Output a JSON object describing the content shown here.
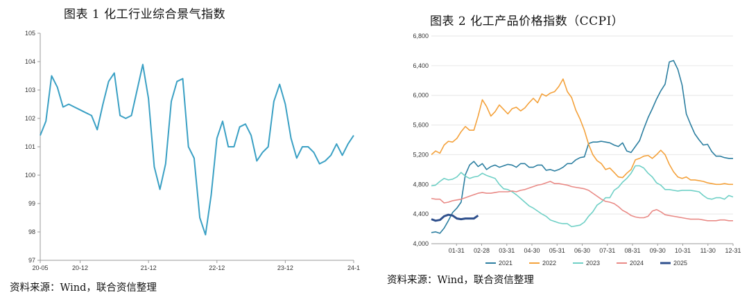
{
  "left": {
    "title": "图表 1  化工行业综合景气指数",
    "source": "资料来源：Wind，联合资信整理"
  },
  "right": {
    "title": "图表 2    化工产品价格指数（CCPI）",
    "source": "资料来源：Wind，联合资信整理"
  },
  "colors": {
    "left_line": "#3aa0c4",
    "s2021": "#2b7ea0",
    "s2022": "#f4a13a",
    "s2023": "#6fd0c6",
    "s2024": "#e98a86",
    "s2025": "#2e4f8c"
  },
  "chart_data": [
    {
      "type": "line",
      "title": "",
      "xlabel": "",
      "ylabel": "",
      "ylim": [
        97,
        105
      ],
      "yticks": [
        "97",
        "98",
        "99",
        "100",
        "101",
        "102",
        "103",
        "104",
        "105"
      ],
      "xticks": [
        "20-05",
        "20-12",
        "21-12",
        "22-12",
        "23-12",
        "24-1"
      ],
      "grid": false,
      "series": [
        {
          "values": [
            101.4,
            101.9,
            103.5,
            103.1,
            102.4,
            102.5,
            102.4,
            102.3,
            102.2,
            102.1,
            101.6,
            102.5,
            103.3,
            103.6,
            102.1,
            102.0,
            102.1,
            103.0,
            103.9,
            102.7,
            100.3,
            99.5,
            100.4,
            102.6,
            103.3,
            103.4,
            101.0,
            100.6,
            98.5,
            97.9,
            99.3,
            101.3,
            101.9,
            101.0,
            101.0,
            101.7,
            101.8,
            101.4,
            100.5,
            100.8,
            101.0,
            102.6,
            103.2,
            102.5,
            101.3,
            100.6,
            101.0,
            101.0,
            100.8,
            100.4,
            100.5,
            100.7,
            101.1,
            100.7,
            101.1,
            101.4
          ]
        }
      ]
    },
    {
      "type": "line",
      "title": "",
      "xlabel": "",
      "ylabel": "",
      "ylim": [
        4000,
        6800
      ],
      "yticks": [
        "4,000",
        "4,400",
        "4,800",
        "5,200",
        "5,600",
        "6,000",
        "6,400",
        "6,800"
      ],
      "xticks": [
        "01-31",
        "02-28",
        "03-31",
        "04-30",
        "05-31",
        "06-30",
        "07-31",
        "08-31",
        "09-30",
        "10-31",
        "11-30",
        "12-31"
      ],
      "grid": true,
      "legend": "bottom",
      "series": [
        {
          "name": "2021",
          "values": [
            4150,
            4160,
            4140,
            4210,
            4310,
            4420,
            4480,
            4560,
            4930,
            5060,
            5110,
            5040,
            5080,
            5000,
            5040,
            5060,
            5030,
            5050,
            5070,
            5060,
            5030,
            5080,
            5080,
            5030,
            5030,
            5060,
            5060,
            4990,
            5000,
            4980,
            5000,
            5030,
            5080,
            5080,
            5130,
            5160,
            5170,
            5350,
            5370,
            5370,
            5380,
            5370,
            5360,
            5330,
            5310,
            5360,
            5250,
            5230,
            5310,
            5390,
            5550,
            5700,
            5820,
            5950,
            6060,
            6150,
            6450,
            6470,
            6350,
            6140,
            5750,
            5610,
            5480,
            5400,
            5330,
            5340,
            5240,
            5180,
            5180,
            5160,
            5150,
            5150
          ]
        },
        {
          "name": "2022",
          "values": [
            5200,
            5250,
            5220,
            5330,
            5380,
            5370,
            5420,
            5510,
            5580,
            5530,
            5530,
            5720,
            5940,
            5850,
            5720,
            5780,
            5870,
            5810,
            5750,
            5820,
            5840,
            5790,
            5830,
            5900,
            5960,
            5900,
            6020,
            5990,
            6030,
            6050,
            6120,
            6220,
            6050,
            5970,
            5800,
            5680,
            5530,
            5340,
            5200,
            5120,
            5080,
            5000,
            5020,
            4960,
            4900,
            4890,
            4950,
            5000,
            5130,
            5150,
            5180,
            5190,
            5150,
            5200,
            5260,
            5200,
            5070,
            4970,
            4900,
            4880,
            4900,
            4860,
            4860,
            4850,
            4840,
            4820,
            4810,
            4800,
            4800,
            4810,
            4800,
            4800
          ]
        },
        {
          "name": "2023",
          "values": [
            4780,
            4790,
            4840,
            4880,
            4860,
            4870,
            4900,
            4960,
            4910,
            4880,
            4900,
            4910,
            4950,
            4920,
            4900,
            4880,
            4800,
            4740,
            4730,
            4700,
            4660,
            4610,
            4560,
            4510,
            4480,
            4440,
            4400,
            4370,
            4320,
            4300,
            4280,
            4270,
            4270,
            4230,
            4240,
            4250,
            4290,
            4370,
            4430,
            4520,
            4560,
            4620,
            4620,
            4720,
            4760,
            4830,
            4880,
            4950,
            5050,
            5050,
            5020,
            4950,
            4900,
            4820,
            4790,
            4730,
            4730,
            4720,
            4710,
            4720,
            4720,
            4720,
            4710,
            4700,
            4650,
            4610,
            4600,
            4620,
            4620,
            4600,
            4650,
            4630
          ]
        },
        {
          "name": "2024",
          "values": [
            4610,
            4600,
            4600,
            4550,
            4560,
            4580,
            4590,
            4600,
            4620,
            4640,
            4660,
            4680,
            4690,
            4680,
            4680,
            4690,
            4700,
            4700,
            4700,
            4710,
            4700,
            4720,
            4730,
            4750,
            4770,
            4790,
            4800,
            4820,
            4840,
            4810,
            4810,
            4800,
            4790,
            4770,
            4760,
            4750,
            4740,
            4720,
            4680,
            4640,
            4600,
            4570,
            4560,
            4540,
            4500,
            4450,
            4420,
            4380,
            4360,
            4350,
            4350,
            4370,
            4440,
            4460,
            4430,
            4390,
            4380,
            4370,
            4360,
            4350,
            4340,
            4330,
            4330,
            4330,
            4320,
            4310,
            4310,
            4310,
            4320,
            4320,
            4310,
            4310
          ]
        },
        {
          "name": "2025",
          "values": [
            4330,
            4310,
            4320,
            4370,
            4390,
            4380,
            4340,
            4330,
            4340,
            4340,
            4340,
            4380
          ]
        }
      ]
    }
  ]
}
